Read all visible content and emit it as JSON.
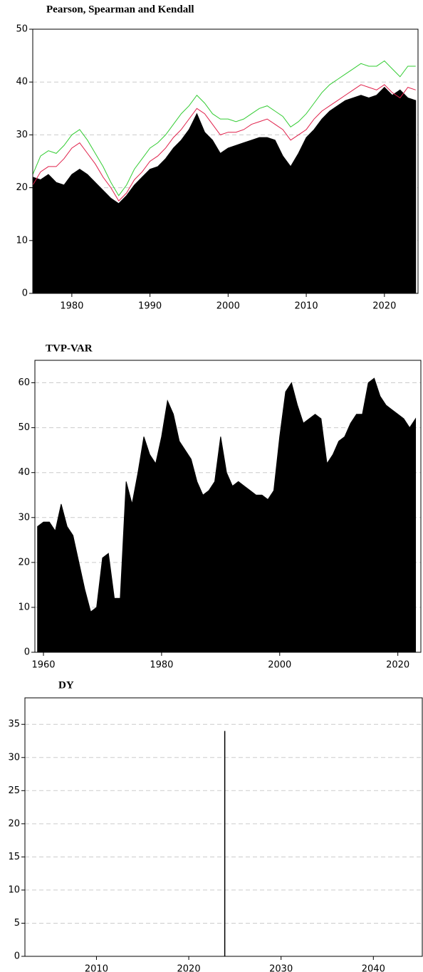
{
  "chart_data": [
    {
      "type": "area",
      "title": "Pearson, Spearman and Kendall",
      "x": [
        1975,
        1976,
        1977,
        1978,
        1979,
        1980,
        1981,
        1982,
        1983,
        1984,
        1985,
        1986,
        1987,
        1988,
        1989,
        1990,
        1991,
        1992,
        1993,
        1994,
        1995,
        1996,
        1997,
        1998,
        1999,
        2000,
        2001,
        2002,
        2003,
        2004,
        2005,
        2006,
        2007,
        2008,
        2009,
        2010,
        2011,
        2012,
        2013,
        2014,
        2015,
        2016,
        2017,
        2018,
        2019,
        2020,
        2021,
        2022,
        2023,
        2024
      ],
      "series": [
        {
          "type": "area",
          "color": "#000000",
          "values": [
            22,
            21.5,
            22.5,
            21,
            20.5,
            22.5,
            23.5,
            22.5,
            21,
            19.5,
            18,
            17,
            18.5,
            20.5,
            22,
            23.5,
            24,
            25.5,
            27.5,
            29,
            31,
            34,
            30.5,
            29,
            26.5,
            27.5,
            28,
            28.5,
            29,
            29.5,
            29.5,
            29,
            26,
            24,
            26.5,
            29.5,
            31,
            33,
            34.5,
            35.5,
            36.5,
            37,
            37.5,
            37,
            37.5,
            39,
            37.5,
            38.5,
            37,
            36.5
          ]
        },
        {
          "type": "line",
          "color": "#e0204a",
          "values": [
            20.5,
            23,
            24,
            24,
            25.5,
            27.5,
            28.5,
            26.5,
            24.5,
            22,
            20,
            17.5,
            19,
            21.5,
            23,
            25,
            26,
            27.5,
            29.5,
            31,
            33,
            35,
            34,
            32,
            30,
            30.5,
            30.5,
            31,
            32,
            32.5,
            33,
            32,
            31,
            29,
            30,
            31,
            33,
            34.5,
            35.5,
            36.5,
            37.5,
            38.5,
            39.5,
            39,
            38.5,
            39.5,
            38,
            37,
            39,
            38.5
          ]
        },
        {
          "type": "line",
          "color": "#33cc33",
          "values": [
            22.5,
            26,
            27,
            26.5,
            28,
            30,
            31,
            29,
            26.5,
            24,
            21,
            18.5,
            20.5,
            23.5,
            25.5,
            27.5,
            28.5,
            30,
            32,
            34,
            35.5,
            37.5,
            36,
            34,
            33,
            33,
            32.5,
            33,
            34,
            35,
            35.5,
            34.5,
            33.5,
            31.5,
            32.5,
            34,
            36,
            38,
            39.5,
            40.5,
            41.5,
            42.5,
            43.5,
            43,
            43,
            44,
            42.5,
            41,
            43,
            43
          ]
        }
      ],
      "xlim": [
        1975,
        2024.3
      ],
      "xticks": [
        1980,
        1990,
        2000,
        2010,
        2020
      ],
      "ylim": [
        0,
        50
      ],
      "yticks": [
        0,
        10,
        20,
        30,
        40,
        50
      ],
      "grid": true
    },
    {
      "type": "area",
      "title": "TVP-VAR",
      "color": "#000000",
      "x": [
        1959,
        1960,
        1961,
        1962,
        1963,
        1964,
        1965,
        1966,
        1967,
        1968,
        1969,
        1970,
        1971,
        1972,
        1973,
        1974,
        1975,
        1976,
        1977,
        1978,
        1979,
        1980,
        1981,
        1982,
        1983,
        1984,
        1985,
        1986,
        1987,
        1988,
        1989,
        1990,
        1991,
        1992,
        1993,
        1994,
        1995,
        1996,
        1997,
        1998,
        1999,
        2000,
        2001,
        2002,
        2003,
        2004,
        2005,
        2006,
        2007,
        2008,
        2009,
        2010,
        2011,
        2012,
        2013,
        2014,
        2015,
        2016,
        2017,
        2018,
        2019,
        2020,
        2021,
        2022,
        2023
      ],
      "values": [
        28,
        29,
        29,
        27,
        33,
        28,
        26,
        20,
        14,
        9,
        10,
        21,
        22,
        12,
        12,
        38,
        33,
        40,
        48,
        44,
        42,
        48,
        56,
        53,
        47,
        45,
        43,
        38,
        35,
        36,
        38,
        48,
        40,
        37,
        38,
        37,
        36,
        35,
        35,
        34,
        36,
        48,
        58,
        60,
        55,
        51,
        52,
        53,
        52,
        42,
        44,
        47,
        48,
        51,
        53,
        53,
        60,
        61,
        57,
        55,
        54,
        53,
        52,
        50,
        52
      ],
      "xlim": [
        1958.55,
        2023.9
      ],
      "xticks": [
        1960,
        1980,
        2000,
        2020
      ],
      "ylim": [
        0,
        65
      ],
      "yticks": [
        0,
        10,
        20,
        30,
        40,
        50,
        60
      ],
      "grid": true
    },
    {
      "type": "bar",
      "title": "DY",
      "color": "#000000",
      "x": [
        2023.9
      ],
      "values": [
        34
      ],
      "xlim": [
        2002.25,
        2045.3
      ],
      "xticks": [
        2010,
        2020,
        2030,
        2040
      ],
      "ylim": [
        0,
        39
      ],
      "yticks": [
        0,
        5,
        10,
        15,
        20,
        25,
        30,
        35
      ],
      "grid": true
    }
  ]
}
